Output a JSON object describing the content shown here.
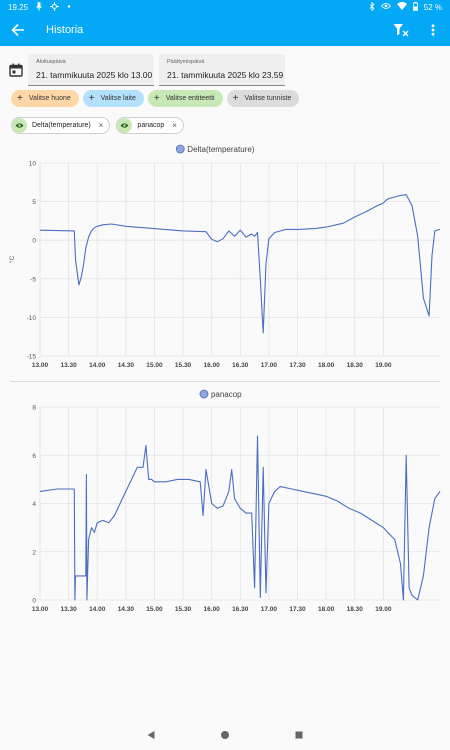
{
  "status_bar": {
    "time": "19.25",
    "icons": [
      "mic-icon",
      "settings-sync-icon",
      "dot-icon"
    ],
    "right_icons": [
      "bluetooth-icon",
      "eye-icon",
      "wifi-icon",
      "battery-icon"
    ],
    "battery": "52 %"
  },
  "app_bar": {
    "title": "Historia",
    "actions": [
      "filter-clear-icon",
      "more-vert-icon"
    ]
  },
  "date_range": {
    "start_label": "Aloituspäivä",
    "start_value": "21. tammikuuta 2025 klo 13.00",
    "end_label": "Päättymispäivä",
    "end_value": "21. tammikuuta 2025 klo 23.59"
  },
  "target_chips": [
    {
      "label": "Valitse huone",
      "color": "#ffd7a6"
    },
    {
      "label": "Valitse laite",
      "color": "#b3e0fb"
    },
    {
      "label": "Valitse entiteetti",
      "color": "#c8e8b6"
    },
    {
      "label": "Valitse tunniste",
      "color": "#dcdcdc"
    }
  ],
  "selected_entities": [
    {
      "label": "Delta(temperature)"
    },
    {
      "label": "panacop"
    }
  ],
  "colors": {
    "accent": "#03a9f4",
    "line": "#4a6fc0",
    "grid": "#e3e3e3"
  },
  "chart_data": [
    {
      "type": "line",
      "ylabel": "°C",
      "ylim": [
        -15,
        10
      ],
      "xlim": [
        13.0,
        19.99
      ],
      "x_unit": "decimal hours",
      "yticks": [
        "10",
        "5",
        "0",
        "-5",
        "-10",
        "-15"
      ],
      "xticks": [
        "13.00",
        "13.30",
        "14.00",
        "14.30",
        "15.00",
        "15.30",
        "16.00",
        "16.30",
        "17.00",
        "17.30",
        "18.00",
        "18.30",
        "19.00"
      ],
      "series": [
        {
          "name": "Delta(temperature)",
          "x": [
            13.0,
            13.6,
            13.62,
            13.68,
            13.72,
            13.76,
            13.8,
            13.85,
            13.9,
            13.95,
            14.0,
            14.1,
            14.25,
            14.5,
            15.0,
            15.5,
            15.9,
            16.0,
            16.1,
            16.2,
            16.3,
            16.4,
            16.5,
            16.6,
            16.7,
            16.75,
            16.8,
            16.85,
            16.9,
            16.95,
            17.0,
            17.1,
            17.3,
            17.5,
            17.8,
            18.0,
            18.3,
            18.5,
            18.7,
            18.9,
            19.0,
            19.05,
            19.1,
            19.2,
            19.3,
            19.4,
            19.5,
            19.6,
            19.7,
            19.8,
            19.85,
            19.9,
            19.99
          ],
          "y": [
            1.3,
            1.2,
            -2.5,
            -5.8,
            -4.8,
            -3.2,
            -1.0,
            0.4,
            1.2,
            1.6,
            1.8,
            2.0,
            2.1,
            1.8,
            1.5,
            1.2,
            1.1,
            0.1,
            -0.2,
            0.2,
            1.2,
            0.5,
            1.3,
            0.4,
            0.8,
            0.5,
            1.0,
            -5.0,
            -12.0,
            -3.0,
            0.2,
            1.0,
            1.4,
            1.4,
            1.5,
            1.7,
            2.2,
            3.0,
            3.7,
            4.5,
            4.8,
            5.2,
            5.4,
            5.6,
            5.8,
            5.9,
            4.5,
            0.5,
            -7.5,
            -9.8,
            -2.0,
            1.2,
            1.4
          ]
        }
      ]
    },
    {
      "type": "line",
      "ylim": [
        0,
        8
      ],
      "xlim": [
        13.0,
        19.99
      ],
      "x_unit": "decimal hours",
      "yticks": [
        "8",
        "6",
        "4",
        "2",
        "0"
      ],
      "xticks": [
        "13.00",
        "13.30",
        "14.00",
        "14.30",
        "15.00",
        "15.30",
        "16.00",
        "16.30",
        "17.00",
        "17.30",
        "18.00",
        "18.30",
        "19.00"
      ],
      "series": [
        {
          "name": "panacop",
          "x": [
            13.0,
            13.3,
            13.6,
            13.61,
            13.62,
            13.7,
            13.8,
            13.81,
            13.82,
            13.85,
            13.9,
            13.95,
            14.0,
            14.1,
            14.2,
            14.3,
            14.4,
            14.5,
            14.6,
            14.7,
            14.8,
            14.85,
            14.9,
            14.95,
            15.0,
            15.2,
            15.4,
            15.6,
            15.8,
            15.85,
            15.9,
            16.0,
            16.1,
            16.2,
            16.3,
            16.35,
            16.4,
            16.45,
            16.5,
            16.6,
            16.7,
            16.75,
            16.8,
            16.85,
            16.9,
            16.95,
            17.0,
            17.1,
            17.2,
            17.4,
            17.6,
            17.8,
            18.0,
            18.2,
            18.4,
            18.6,
            18.8,
            19.0,
            19.2,
            19.3,
            19.35,
            19.4,
            19.45,
            19.5,
            19.6,
            19.7,
            19.8,
            19.9,
            19.99
          ],
          "y": [
            4.5,
            4.6,
            4.6,
            0.0,
            1.0,
            1.0,
            1.0,
            5.2,
            0.0,
            2.5,
            3.0,
            2.8,
            3.2,
            3.3,
            3.2,
            3.5,
            4.0,
            4.5,
            5.0,
            5.5,
            5.5,
            6.4,
            5.0,
            5.0,
            4.9,
            4.9,
            5.0,
            5.0,
            4.9,
            3.5,
            5.4,
            4.0,
            3.8,
            3.9,
            4.5,
            5.4,
            4.2,
            4.0,
            3.8,
            3.6,
            3.6,
            0.5,
            6.8,
            0.1,
            5.5,
            0.3,
            4.0,
            4.5,
            4.7,
            4.6,
            4.5,
            4.4,
            4.3,
            4.1,
            3.8,
            3.6,
            3.3,
            3.0,
            2.5,
            1.5,
            0.0,
            6.0,
            0.5,
            0.2,
            0.0,
            1.0,
            3.0,
            4.2,
            4.5
          ]
        }
      ]
    }
  ]
}
